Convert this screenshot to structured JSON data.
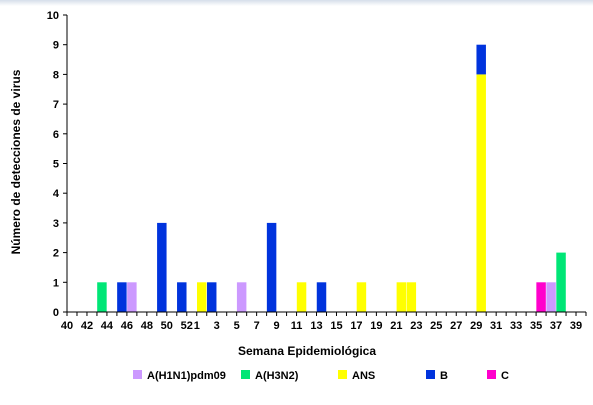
{
  "chart_data": {
    "type": "bar",
    "stacked": true,
    "xlabel": "Semana Epidemiológica",
    "ylabel": "Número de detecciones de virus",
    "ylim": [
      0,
      10
    ],
    "yticks": [
      "0",
      "1",
      "2",
      "3",
      "4",
      "5",
      "6",
      "7",
      "8",
      "9",
      "10"
    ],
    "categories": [
      "40",
      "41",
      "42",
      "43",
      "44",
      "45",
      "46",
      "47",
      "48",
      "49",
      "50",
      "51",
      "52",
      "1",
      "2",
      "3",
      "4",
      "5",
      "6",
      "7",
      "8",
      "9",
      "10",
      "11",
      "12",
      "13",
      "14",
      "15",
      "16",
      "17",
      "18",
      "19",
      "20",
      "21",
      "22",
      "23",
      "24",
      "25",
      "26",
      "27",
      "28",
      "29",
      "30",
      "31",
      "32",
      "33",
      "34",
      "35",
      "36",
      "37",
      "38",
      "39"
    ],
    "tick_labels": [
      "40",
      "42",
      "44",
      "46",
      "48",
      "50",
      "52",
      "1",
      "3",
      "5",
      "7",
      "9",
      "11",
      "13",
      "15",
      "17",
      "19",
      "21",
      "23",
      "25",
      "27",
      "29",
      "31",
      "33",
      "35",
      "37",
      "39"
    ],
    "legend": "bottom",
    "series": [
      {
        "name": "A(H1N1)pdm09",
        "color": "#cc99ff",
        "values": [
          0,
          0,
          0,
          0,
          0,
          0,
          1,
          0,
          0,
          0,
          0,
          0,
          0,
          0,
          0,
          0,
          0,
          1,
          0,
          0,
          0,
          0,
          0,
          0,
          0,
          0,
          0,
          0,
          0,
          0,
          0,
          0,
          0,
          0,
          0,
          0,
          0,
          0,
          0,
          0,
          0,
          0,
          0,
          0,
          0,
          0,
          0,
          0,
          1,
          0,
          0,
          0
        ]
      },
      {
        "name": "A(H3N2)",
        "color": "#00e676",
        "values": [
          0,
          0,
          0,
          1,
          0,
          0,
          0,
          0,
          0,
          0,
          0,
          0,
          0,
          0,
          0,
          0,
          0,
          0,
          0,
          0,
          0,
          0,
          0,
          0,
          0,
          0,
          0,
          0,
          0,
          0,
          0,
          0,
          0,
          0,
          0,
          0,
          0,
          0,
          0,
          0,
          0,
          0,
          0,
          0,
          0,
          0,
          0,
          0,
          0,
          2,
          0,
          0
        ]
      },
      {
        "name": "ANS",
        "color": "#ffff00",
        "values": [
          0,
          0,
          0,
          0,
          0,
          0,
          0,
          0,
          0,
          0,
          0,
          0,
          0,
          1,
          0,
          0,
          0,
          0,
          0,
          0,
          0,
          0,
          0,
          1,
          0,
          0,
          0,
          0,
          0,
          1,
          0,
          0,
          0,
          1,
          1,
          0,
          0,
          0,
          0,
          0,
          0,
          8,
          0,
          0,
          0,
          0,
          0,
          0,
          0,
          0,
          0,
          0
        ]
      },
      {
        "name": "B",
        "color": "#0033dd",
        "values": [
          0,
          0,
          0,
          0,
          0,
          1,
          0,
          0,
          0,
          3,
          0,
          1,
          0,
          0,
          1,
          0,
          0,
          0,
          0,
          0,
          3,
          0,
          0,
          0,
          0,
          1,
          0,
          0,
          0,
          0,
          0,
          0,
          0,
          0,
          0,
          0,
          0,
          0,
          0,
          0,
          0,
          1,
          0,
          0,
          0,
          0,
          0,
          0,
          0,
          0,
          0,
          0
        ]
      },
      {
        "name": "C",
        "color": "#ff00cc",
        "values": [
          0,
          0,
          0,
          0,
          0,
          0,
          0,
          0,
          0,
          0,
          0,
          0,
          0,
          0,
          0,
          0,
          0,
          0,
          0,
          0,
          0,
          0,
          0,
          0,
          0,
          0,
          0,
          0,
          0,
          0,
          0,
          0,
          0,
          0,
          0,
          0,
          0,
          0,
          0,
          0,
          0,
          0,
          0,
          0,
          0,
          0,
          0,
          1,
          0,
          0,
          0,
          0
        ]
      }
    ]
  }
}
